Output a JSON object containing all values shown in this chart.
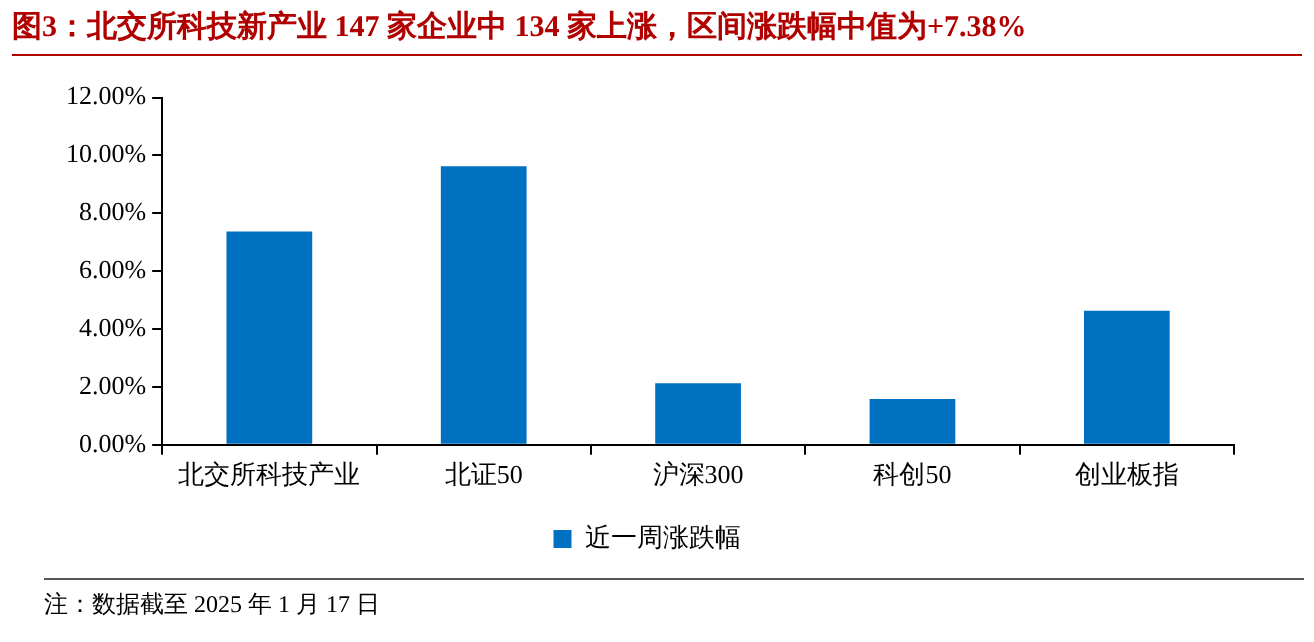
{
  "chart_data": {
    "type": "bar",
    "title": "图3：北交所科技新产业 147 家企业中 134 家上涨，区间涨跌幅中值为+7.38%",
    "categories": [
      "北交所科技产业",
      "北证50",
      "沪深300",
      "科创50",
      "创业板指"
    ],
    "series": [
      {
        "name": "近一周涨跌幅",
        "color": "#0070c0",
        "values": [
          7.37,
          9.63,
          2.13,
          1.58,
          4.63
        ]
      }
    ],
    "ylim": [
      0,
      12
    ],
    "yticks": [
      {
        "value": 0,
        "label": "0.00%"
      },
      {
        "value": 2,
        "label": "2.00%"
      },
      {
        "value": 4,
        "label": "4.00%"
      },
      {
        "value": 6,
        "label": "6.00%"
      },
      {
        "value": 8,
        "label": "8.00%"
      },
      {
        "value": 10,
        "label": "10.00%"
      },
      {
        "value": 12,
        "label": "12.00%"
      }
    ],
    "grid": false,
    "legend": "bottom",
    "annotations": [
      "注：数据截至 2025 年 1 月 17 日"
    ]
  }
}
